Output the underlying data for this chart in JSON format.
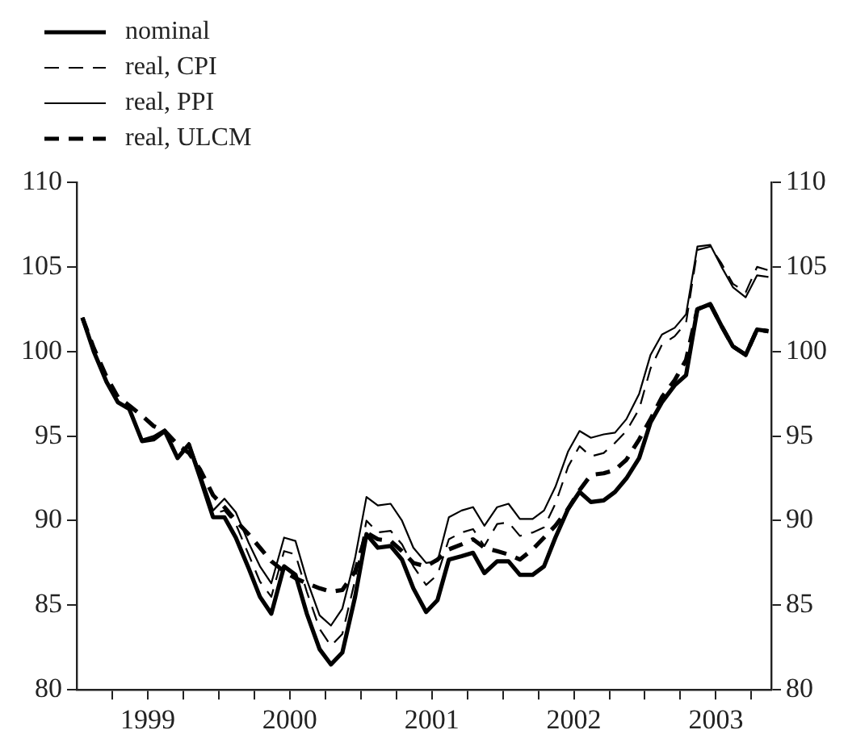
{
  "chart_data": {
    "type": "line",
    "x": [
      1999.04,
      1999.12,
      1999.21,
      1999.29,
      1999.37,
      1999.46,
      1999.54,
      1999.62,
      1999.71,
      1999.79,
      1999.87,
      1999.96,
      2000.04,
      2000.12,
      2000.21,
      2000.29,
      2000.37,
      2000.46,
      2000.54,
      2000.62,
      2000.71,
      2000.79,
      2000.87,
      2000.96,
      2001.04,
      2001.12,
      2001.21,
      2001.29,
      2001.37,
      2001.46,
      2001.54,
      2001.62,
      2001.71,
      2001.79,
      2001.87,
      2001.96,
      2002.04,
      2002.12,
      2002.21,
      2002.29,
      2002.37,
      2002.46,
      2002.54,
      2002.62,
      2002.71,
      2002.79,
      2002.87,
      2002.96,
      2003.04,
      2003.12,
      2003.21,
      2003.29,
      2003.37,
      2003.46,
      2003.54,
      2003.62,
      2003.71,
      2003.79,
      2003.87
    ],
    "series": [
      {
        "name": "nominal",
        "color": "#000000",
        "line_style": "solid",
        "values": [
          102.0,
          100.0,
          98.2,
          97.0,
          96.6,
          94.7,
          94.8,
          95.3,
          93.7,
          94.5,
          92.5,
          90.2,
          90.2,
          89.0,
          87.2,
          85.5,
          84.5,
          87.3,
          86.8,
          84.5,
          82.4,
          81.5,
          82.2,
          85.5,
          89.2,
          88.4,
          88.5,
          87.7,
          86.0,
          84.6,
          85.3,
          87.7,
          87.9,
          88.1,
          86.9,
          87.6,
          87.6,
          86.8,
          86.8,
          87.3,
          89.0,
          90.7,
          91.7,
          91.1,
          91.2,
          91.7,
          92.5,
          93.7,
          95.8,
          97.0,
          98.0,
          98.6,
          102.5,
          102.8,
          101.5,
          100.3,
          99.8,
          101.3,
          101.2
        ]
      },
      {
        "name": "real, CPI",
        "color": "#000000",
        "line_style": "dashed",
        "values": [
          102.0,
          100.0,
          98.2,
          97.0,
          96.6,
          94.7,
          94.9,
          95.3,
          93.8,
          94.5,
          92.6,
          90.4,
          90.6,
          89.8,
          88.0,
          86.4,
          85.5,
          88.2,
          88.0,
          85.8,
          83.6,
          82.6,
          83.3,
          86.5,
          90.0,
          89.3,
          89.4,
          88.6,
          87.3,
          86.2,
          86.8,
          88.9,
          89.3,
          89.5,
          88.5,
          89.8,
          89.9,
          89.1,
          89.3,
          89.6,
          91.0,
          93.2,
          94.4,
          93.8,
          94.0,
          94.6,
          95.3,
          96.6,
          99.0,
          100.4,
          100.9,
          101.7,
          106.0,
          106.2,
          105.2,
          104.0,
          103.5,
          105.0,
          104.8
        ]
      },
      {
        "name": "real, PPI",
        "color": "#000000",
        "line_style": "solid",
        "values": [
          102.0,
          100.0,
          98.2,
          97.0,
          96.6,
          94.8,
          95.0,
          95.4,
          93.8,
          94.6,
          92.8,
          90.6,
          91.3,
          90.5,
          88.7,
          87.3,
          86.3,
          89.0,
          88.8,
          86.5,
          84.4,
          83.8,
          84.8,
          87.8,
          91.4,
          90.9,
          91.0,
          90.0,
          88.4,
          87.5,
          87.6,
          90.2,
          90.6,
          90.8,
          89.7,
          90.8,
          91.0,
          90.1,
          90.1,
          90.6,
          92.0,
          94.1,
          95.3,
          94.9,
          95.1,
          95.2,
          96.0,
          97.5,
          99.8,
          101.0,
          101.4,
          102.2,
          106.2,
          106.3,
          105.0,
          103.8,
          103.2,
          104.5,
          104.4
        ]
      },
      {
        "name": "real, ULCM",
        "color": "#000000",
        "line_style": "dashed",
        "values": [
          102.0,
          100.2,
          98.5,
          97.3,
          96.8,
          96.2,
          95.6,
          95.3,
          94.5,
          94.0,
          93.0,
          91.5,
          90.8,
          90.0,
          89.2,
          88.4,
          87.6,
          87.0,
          86.6,
          86.3,
          86.0,
          85.8,
          85.9,
          87.0,
          89.3,
          88.9,
          88.8,
          88.2,
          87.5,
          87.3,
          87.7,
          88.3,
          88.6,
          88.9,
          88.4,
          88.2,
          88.0,
          87.7,
          88.3,
          89.0,
          89.7,
          90.7,
          91.8,
          92.7,
          92.8,
          93.0,
          93.6,
          94.8,
          96.0,
          97.3,
          98.3,
          99.5,
          102.5,
          102.8,
          101.5,
          100.3,
          99.8,
          101.3,
          101.2
        ]
      }
    ],
    "xlim": [
      1999,
      2003.89
    ],
    "xticks": [
      {
        "value": 1999.25,
        "label": null
      },
      {
        "value": 1999.5,
        "label": "1999"
      },
      {
        "value": 1999.75,
        "label": null
      },
      {
        "value": 2000,
        "label": null
      },
      {
        "value": 2000.25,
        "label": null
      },
      {
        "value": 2000.5,
        "label": "2000"
      },
      {
        "value": 2000.75,
        "label": null
      },
      {
        "value": 2001,
        "label": null
      },
      {
        "value": 2001.25,
        "label": null
      },
      {
        "value": 2001.5,
        "label": "2001"
      },
      {
        "value": 2001.75,
        "label": null
      },
      {
        "value": 2002,
        "label": null
      },
      {
        "value": 2002.25,
        "label": null
      },
      {
        "value": 2002.5,
        "label": "2002"
      },
      {
        "value": 2002.75,
        "label": null
      },
      {
        "value": 2003,
        "label": null
      },
      {
        "value": 2003.25,
        "label": null
      },
      {
        "value": 2003.5,
        "label": "2003"
      },
      {
        "value": 2003.75,
        "label": null
      }
    ],
    "ylim": [
      80,
      110
    ],
    "yticks": [
      80,
      85,
      90,
      95,
      100,
      105,
      110
    ],
    "y2lim": [
      80,
      110
    ],
    "y2ticks": [
      80,
      85,
      90,
      95,
      100,
      105,
      110
    ],
    "grid": false,
    "legend": "top left",
    "marker": "none"
  }
}
